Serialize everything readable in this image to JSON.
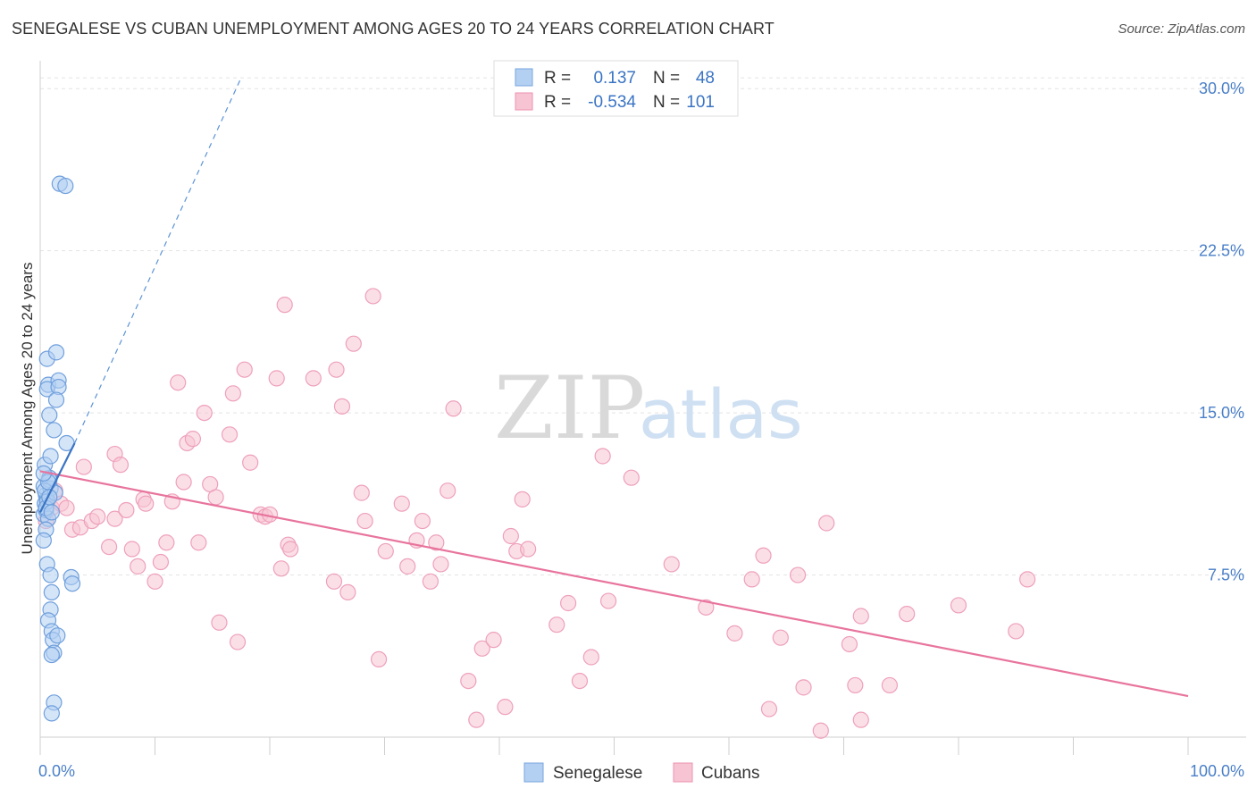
{
  "title": "SENEGALESE VS CUBAN UNEMPLOYMENT AMONG AGES 20 TO 24 YEARS CORRELATION CHART",
  "source": "Source: ZipAtlas.com",
  "watermark": {
    "zip": "ZIP",
    "atlas": "atlas"
  },
  "legend": {
    "r_label": "R =",
    "n_label": "N =",
    "series": [
      {
        "r": "0.137",
        "n": "48",
        "color": "#a9c8ef",
        "stroke": "#7aa6de"
      },
      {
        "r": "-0.534",
        "n": "101",
        "color": "#f7bfd0",
        "stroke": "#ee93b0"
      }
    ]
  },
  "chart_data": {
    "type": "scatter",
    "title": "SENEGALESE VS CUBAN UNEMPLOYMENT AMONG AGES 20 TO 24 YEARS CORRELATION CHART",
    "xlabel": "",
    "ylabel": "Unemployment Among Ages 20 to 24 years",
    "xlim": [
      0,
      100
    ],
    "ylim": [
      0,
      31
    ],
    "x_tick_labels": [
      "0.0%",
      "100.0%"
    ],
    "y_ticks": [
      7.5,
      15.0,
      22.5,
      30.0
    ],
    "y_tick_labels": [
      "7.5%",
      "15.0%",
      "22.5%",
      "30.0%"
    ],
    "grid": "horizontal dashed",
    "series": [
      {
        "name": "Senegalese",
        "color": "#5b93d6",
        "fill": "#b3d0f2",
        "points": [
          [
            0.3,
            10.3
          ],
          [
            0.4,
            10.8
          ],
          [
            0.5,
            11.2
          ],
          [
            0.3,
            11.6
          ],
          [
            0.6,
            11.0
          ],
          [
            0.5,
            10.5
          ],
          [
            0.8,
            12.0
          ],
          [
            0.4,
            12.6
          ],
          [
            0.9,
            11.5
          ],
          [
            0.7,
            10.1
          ],
          [
            0.5,
            9.6
          ],
          [
            0.3,
            9.1
          ],
          [
            0.6,
            8.0
          ],
          [
            0.9,
            7.5
          ],
          [
            1.0,
            6.7
          ],
          [
            0.9,
            5.9
          ],
          [
            0.7,
            5.4
          ],
          [
            1.0,
            4.9
          ],
          [
            1.1,
            4.5
          ],
          [
            1.5,
            4.7
          ],
          [
            1.2,
            3.9
          ],
          [
            1.0,
            3.8
          ],
          [
            1.2,
            1.6
          ],
          [
            1.0,
            1.1
          ],
          [
            0.6,
            17.5
          ],
          [
            1.4,
            17.8
          ],
          [
            0.7,
            16.3
          ],
          [
            0.6,
            16.1
          ],
          [
            1.6,
            16.5
          ],
          [
            1.6,
            16.2
          ],
          [
            1.4,
            15.6
          ],
          [
            0.8,
            14.9
          ],
          [
            1.2,
            14.2
          ],
          [
            2.3,
            13.6
          ],
          [
            0.9,
            13.0
          ],
          [
            2.7,
            7.4
          ],
          [
            2.8,
            7.1
          ],
          [
            1.7,
            25.6
          ],
          [
            2.2,
            25.5
          ],
          [
            0.8,
            11.9
          ],
          [
            0.4,
            11.4
          ],
          [
            0.6,
            10.9
          ],
          [
            1.3,
            11.3
          ],
          [
            0.5,
            10.6
          ],
          [
            0.7,
            11.8
          ],
          [
            0.3,
            12.2
          ],
          [
            1.0,
            10.4
          ],
          [
            0.8,
            11.1
          ]
        ],
        "trend_solid": [
          [
            0.0,
            10.4
          ],
          [
            3.0,
            13.6
          ]
        ],
        "trend_dashed": [
          [
            3.0,
            13.6
          ],
          [
            17.5,
            30.5
          ]
        ]
      },
      {
        "name": "Cubans",
        "color": "#e8749d",
        "fill": "#f7c4d4",
        "points": [
          [
            0.5,
            10.0
          ],
          [
            1.0,
            10.6
          ],
          [
            1.3,
            11.4
          ],
          [
            1.8,
            10.8
          ],
          [
            2.3,
            10.6
          ],
          [
            2.8,
            9.6
          ],
          [
            3.5,
            9.7
          ],
          [
            3.8,
            12.5
          ],
          [
            4.5,
            10.0
          ],
          [
            5.0,
            10.2
          ],
          [
            6.5,
            10.1
          ],
          [
            6.0,
            8.8
          ],
          [
            6.5,
            13.1
          ],
          [
            7.0,
            12.6
          ],
          [
            7.5,
            10.5
          ],
          [
            8.0,
            8.7
          ],
          [
            8.5,
            7.9
          ],
          [
            9.0,
            11.0
          ],
          [
            9.2,
            10.8
          ],
          [
            10.0,
            7.2
          ],
          [
            10.5,
            8.1
          ],
          [
            11.0,
            9.0
          ],
          [
            11.5,
            10.9
          ],
          [
            12.0,
            16.4
          ],
          [
            12.5,
            11.8
          ],
          [
            12.8,
            13.6
          ],
          [
            13.3,
            13.8
          ],
          [
            13.8,
            9.0
          ],
          [
            14.3,
            15.0
          ],
          [
            14.8,
            11.7
          ],
          [
            15.3,
            11.1
          ],
          [
            15.6,
            5.3
          ],
          [
            16.5,
            14.0
          ],
          [
            16.8,
            15.9
          ],
          [
            17.2,
            4.4
          ],
          [
            17.8,
            17.0
          ],
          [
            18.3,
            12.7
          ],
          [
            19.2,
            10.3
          ],
          [
            19.6,
            10.2
          ],
          [
            20.0,
            10.3
          ],
          [
            20.6,
            16.6
          ],
          [
            21.0,
            7.8
          ],
          [
            21.3,
            20.0
          ],
          [
            21.6,
            8.9
          ],
          [
            21.8,
            8.7
          ],
          [
            23.8,
            16.6
          ],
          [
            25.6,
            7.2
          ],
          [
            25.8,
            17.0
          ],
          [
            26.3,
            15.3
          ],
          [
            26.8,
            6.7
          ],
          [
            27.3,
            18.2
          ],
          [
            28.0,
            11.3
          ],
          [
            28.3,
            10.0
          ],
          [
            29.0,
            20.4
          ],
          [
            29.5,
            3.6
          ],
          [
            30.1,
            8.6
          ],
          [
            31.5,
            10.8
          ],
          [
            32.0,
            7.9
          ],
          [
            32.8,
            9.1
          ],
          [
            33.3,
            10.0
          ],
          [
            34.0,
            7.2
          ],
          [
            34.5,
            9.0
          ],
          [
            34.9,
            8.0
          ],
          [
            35.5,
            11.4
          ],
          [
            36.0,
            15.2
          ],
          [
            37.3,
            2.6
          ],
          [
            38.0,
            0.8
          ],
          [
            38.5,
            4.1
          ],
          [
            39.5,
            4.5
          ],
          [
            40.5,
            1.4
          ],
          [
            41.0,
            9.3
          ],
          [
            41.5,
            8.6
          ],
          [
            42.0,
            11.0
          ],
          [
            42.5,
            8.7
          ],
          [
            45.0,
            5.2
          ],
          [
            46.0,
            6.2
          ],
          [
            47.0,
            2.6
          ],
          [
            48.0,
            3.7
          ],
          [
            49.0,
            13.0
          ],
          [
            49.5,
            6.3
          ],
          [
            51.5,
            12.0
          ],
          [
            55.0,
            8.0
          ],
          [
            58.0,
            6.0
          ],
          [
            60.5,
            4.8
          ],
          [
            62.0,
            7.3
          ],
          [
            63.0,
            8.4
          ],
          [
            63.5,
            1.3
          ],
          [
            64.5,
            4.6
          ],
          [
            66.0,
            7.5
          ],
          [
            66.5,
            2.3
          ],
          [
            68.0,
            0.3
          ],
          [
            68.5,
            9.9
          ],
          [
            70.5,
            4.3
          ],
          [
            71.0,
            2.4
          ],
          [
            71.5,
            5.6
          ],
          [
            71.5,
            0.8
          ],
          [
            74.0,
            2.4
          ],
          [
            75.5,
            5.7
          ],
          [
            80.0,
            6.1
          ],
          [
            85.0,
            4.9
          ],
          [
            86.0,
            7.3
          ]
        ],
        "trend": [
          [
            0.0,
            12.3
          ],
          [
            100.0,
            1.9
          ]
        ]
      }
    ]
  },
  "bottom_legend": [
    {
      "label": "Senegalese",
      "color": "#b3d0f2",
      "stroke": "#7aa6de"
    },
    {
      "label": "Cubans",
      "color": "#f7c4d4",
      "stroke": "#ee93b0"
    }
  ]
}
